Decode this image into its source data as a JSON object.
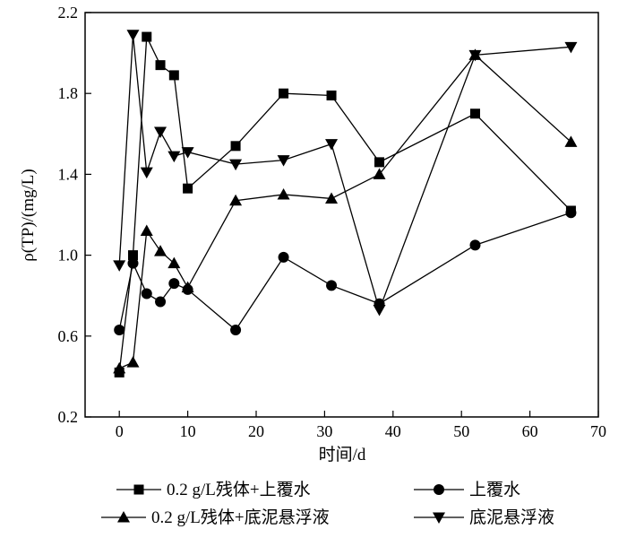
{
  "chart_data": {
    "type": "line",
    "xlabel": "时间/d",
    "ylabel": "ρ(TP)/(mg/L)",
    "xlim": [
      -5,
      70
    ],
    "ylim": [
      0.2,
      2.2
    ],
    "xticks": [
      0,
      10,
      20,
      30,
      40,
      50,
      60,
      70
    ],
    "yticks": [
      0.2,
      0.6,
      1.0,
      1.4,
      1.8,
      2.2
    ],
    "ytick_labels": [
      "0.2",
      "0.6",
      "1.0",
      "1.4",
      "1.8",
      "2.2"
    ],
    "grid": false,
    "legend_position": "bottom",
    "series": [
      {
        "name": "0.2 g/L残体+上覆水",
        "marker": "square",
        "x": [
          0,
          2,
          4,
          6,
          8,
          10,
          17,
          24,
          31,
          38,
          52,
          66
        ],
        "y": [
          0.42,
          1.0,
          2.08,
          1.94,
          1.89,
          1.33,
          1.54,
          1.8,
          1.79,
          1.46,
          1.7,
          1.22
        ]
      },
      {
        "name": "上覆水",
        "marker": "circle",
        "x": [
          0,
          2,
          4,
          6,
          8,
          10,
          17,
          24,
          31,
          38,
          52,
          66
        ],
        "y": [
          0.63,
          0.96,
          0.81,
          0.77,
          0.86,
          0.83,
          0.63,
          0.99,
          0.85,
          0.76,
          1.05,
          1.21
        ]
      },
      {
        "name": "0.2 g/L残体+底泥悬浮液",
        "marker": "triangle-up",
        "x": [
          0,
          2,
          4,
          6,
          8,
          10,
          17,
          24,
          31,
          38,
          52,
          66
        ],
        "y": [
          0.44,
          0.47,
          1.12,
          1.02,
          0.96,
          0.84,
          1.27,
          1.3,
          1.28,
          1.4,
          1.99,
          1.56
        ]
      },
      {
        "name": "底泥悬浮液",
        "marker": "triangle-down",
        "x": [
          0,
          2,
          4,
          6,
          8,
          10,
          17,
          24,
          31,
          38,
          52,
          66
        ],
        "y": [
          0.95,
          2.09,
          1.41,
          1.61,
          1.49,
          1.51,
          1.45,
          1.47,
          1.55,
          0.73,
          1.99,
          2.03
        ]
      }
    ]
  }
}
